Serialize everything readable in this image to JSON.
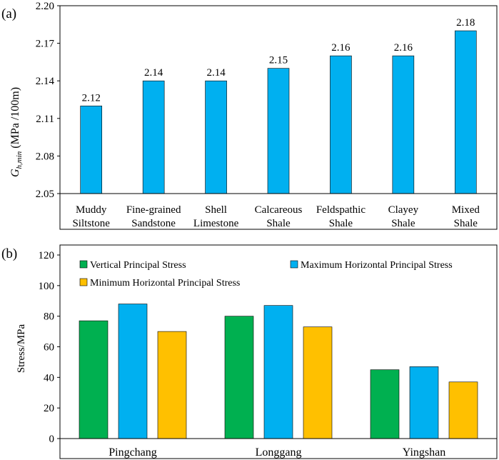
{
  "colors": {
    "bar_a": "#00B0F0",
    "vertical": "#00B050",
    "max_horizontal": "#00B0F0",
    "min_horizontal": "#FFC000",
    "axis": "#000000",
    "frame": "#000000"
  },
  "chart_data": [
    {
      "panel_label": "(a)",
      "type": "bar",
      "ylabel_main": "G",
      "ylabel_sub": "h,min",
      "ylabel_unit": " (MPa /100m)",
      "ylim": [
        2.05,
        2.2
      ],
      "yticks": [
        "2.05",
        "2.08",
        "2.11",
        "2.14",
        "2.17",
        "2.20"
      ],
      "categories": [
        [
          "Muddy",
          "Siltstone"
        ],
        [
          "Fine-grained",
          "Sandstone"
        ],
        [
          "Shell",
          "Limestone"
        ],
        [
          "Calcareous",
          "Shale"
        ],
        [
          "Feldspathic",
          "Shale"
        ],
        [
          "Clayey",
          "Shale"
        ],
        [
          "Mixed",
          "Shale"
        ]
      ],
      "values": [
        2.12,
        2.14,
        2.14,
        2.15,
        2.16,
        2.16,
        2.18
      ],
      "value_labels": [
        "2.12",
        "2.14",
        "2.14",
        "2.15",
        "2.16",
        "2.16",
        "2.18"
      ]
    },
    {
      "panel_label": "(b)",
      "type": "bar",
      "ylabel": "Stress/MPa",
      "ylim": [
        0,
        120
      ],
      "yticks": [
        "0",
        "20",
        "40",
        "60",
        "80",
        "100",
        "120"
      ],
      "categories": [
        "Pingchang",
        "Longgang",
        "Yingshan"
      ],
      "series": [
        {
          "name": "Vertical Principal Stress",
          "values": [
            77,
            80,
            45
          ]
        },
        {
          "name": "Maximum Horizontal Principal Stress",
          "values": [
            88,
            87,
            47
          ]
        },
        {
          "name": "Minimum Horizontal Principal Stress",
          "values": [
            70,
            73,
            37
          ]
        }
      ],
      "legend_position": "top"
    }
  ]
}
